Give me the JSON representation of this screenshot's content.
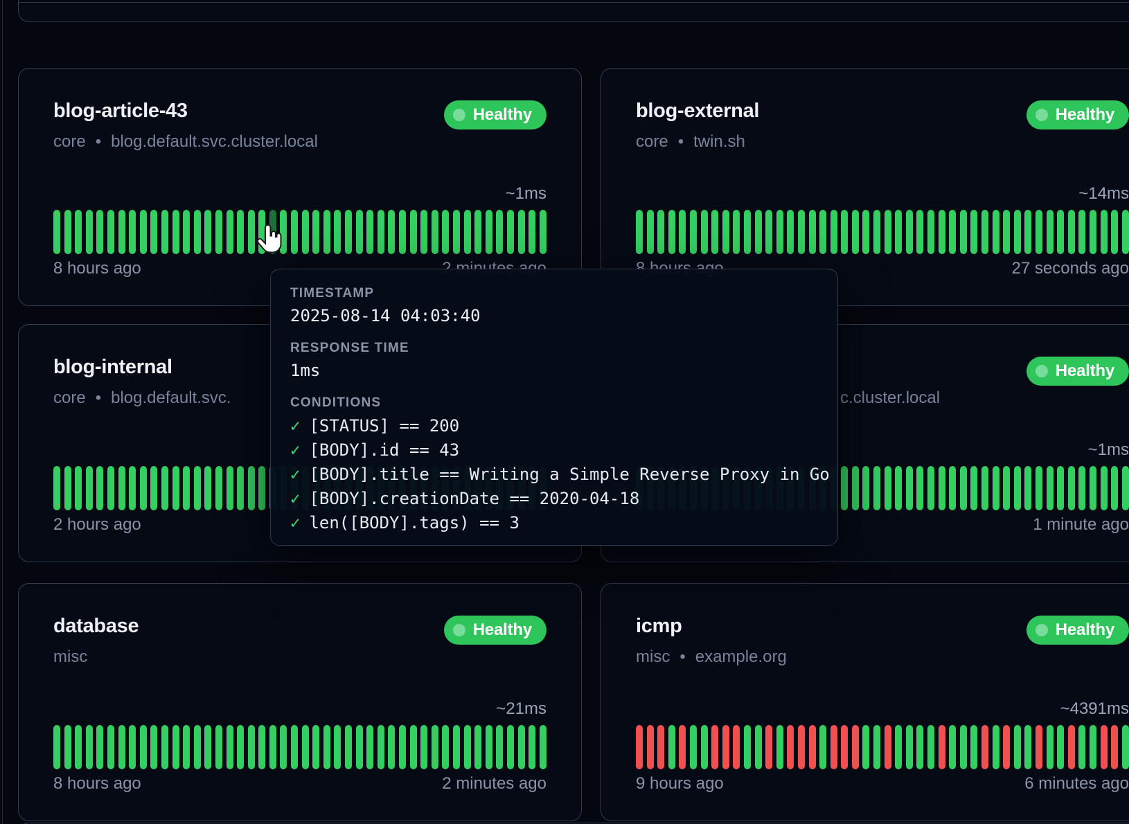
{
  "theme": {
    "background": "#04070e",
    "card_background": "#050a15",
    "card_border": "#333c52",
    "healthy_green": "#2ec55b",
    "bar_green": "#35ce60",
    "bar_red": "#f05050",
    "bar_hovered": "#1d7039",
    "title_color": "#eef1f6",
    "muted_color": "#79849b"
  },
  "tooltip": {
    "timestamp_label": "TIMESTAMP",
    "timestamp": "2025-08-14 04:03:40",
    "response_label": "RESPONSE TIME",
    "response": "1ms",
    "conditions_label": "CONDITIONS",
    "check_icon": "✓",
    "conditions": [
      "[STATUS] == 200",
      "[BODY].id == 43",
      "[BODY].title == Writing a Simple Reverse Proxy in Go",
      "[BODY].creationDate == 2020-04-18",
      "len([BODY].tags) == 3"
    ]
  },
  "cards": [
    {
      "name": "blog-article-43",
      "group": "core",
      "target": "blog.default.svc.cluster.local",
      "status": "Healthy",
      "response_time": "~1ms",
      "time_left": "8 hours ago",
      "time_right": "2 minutes ago",
      "bars": "ggggggggggggggggggggdggggggggggggggggggggggggg"
    },
    {
      "name": "blog-external",
      "group": "core",
      "target": "twin.sh",
      "status": "Healthy",
      "response_time": "~14ms",
      "time_left": "8 hours ago",
      "time_right": "27 seconds ago",
      "bars": "gggggggggggggggggggggggggggggggggggggggggggggg"
    },
    {
      "name": "blog-internal",
      "group": "core",
      "target": "blog.default.svc.",
      "status": "",
      "response_time": "",
      "time_left": "2 hours ago",
      "time_right": "",
      "bars": "gggggggggggggggggggggggggggggggggggggggggggggg"
    },
    {
      "name": "",
      "group": "",
      "target": "c.cluster.local",
      "target_indent": 295,
      "status": "Healthy",
      "response_time": "~1ms",
      "time_left": "",
      "time_right": "1 minute ago",
      "bars": "gggggggggggggggggggggggggggggggggggggggggggggg"
    },
    {
      "name": "database",
      "group": "misc",
      "target": "",
      "status": "Healthy",
      "response_time": "~21ms",
      "time_left": "8 hours ago",
      "time_right": "2 minutes ago",
      "bars": "gggggggggggggggggggggggggggggggggggggggggggggg"
    },
    {
      "name": "icmp",
      "group": "misc",
      "target": "example.org",
      "status": "Healthy",
      "response_time": "~4391ms",
      "time_left": "9 hours ago",
      "time_right": "6 minutes ago",
      "bars": "rrrgrggrrrggrgrrrgrrrggrggggrgggrgrggrggrggrrg"
    }
  ]
}
